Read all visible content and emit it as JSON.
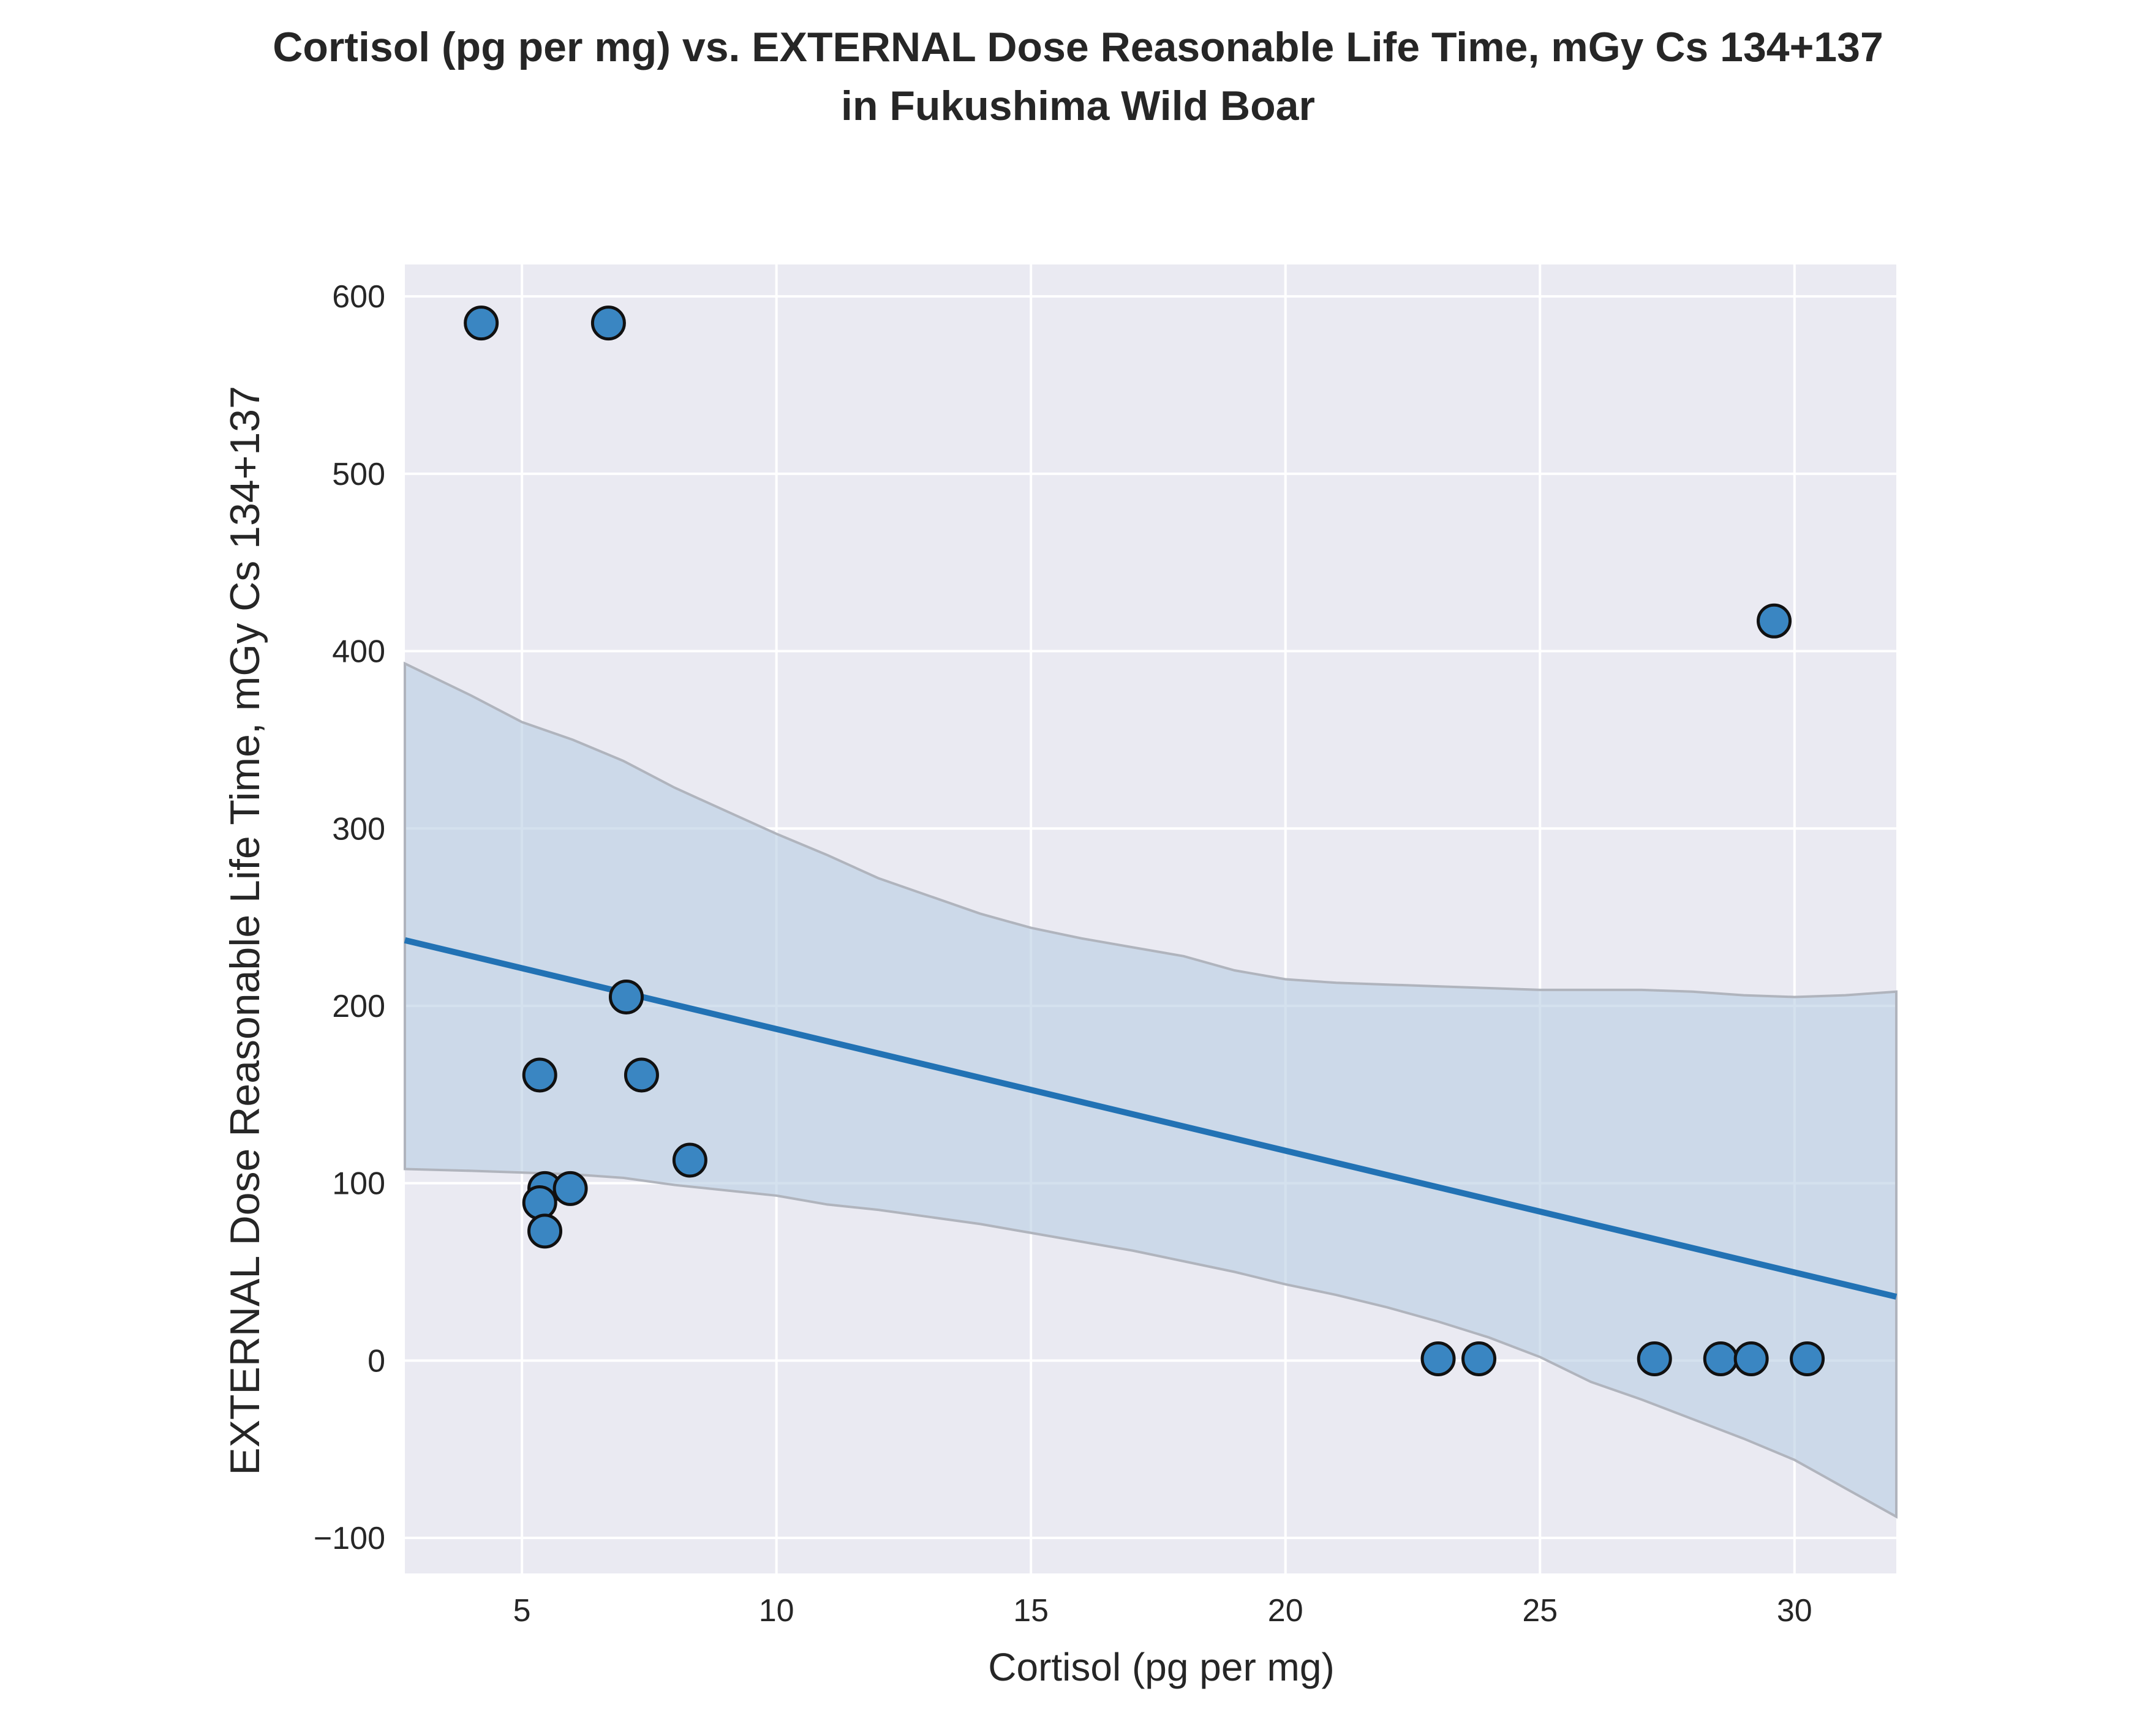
{
  "chart_data": {
    "type": "scatter",
    "title": "Cortisol (pg per mg) vs. EXTERNAL Dose Reasonable Life Time, mGy Cs 134+137",
    "subtitle": "in Fukushima Wild Boar",
    "xlabel": "Cortisol (pg per mg)",
    "ylabel": "EXTERNAL Dose Reasonable Life Time, mGy Cs 134+137",
    "xlim": [
      2.7,
      32.0
    ],
    "ylim": [
      -120,
      618
    ],
    "xticks": [
      5,
      10,
      15,
      20,
      25,
      30
    ],
    "yticks": [
      -100,
      0,
      100,
      200,
      300,
      400,
      500,
      600
    ],
    "grid": true,
    "points": [
      {
        "x": 4.2,
        "y": 585
      },
      {
        "x": 6.7,
        "y": 585
      },
      {
        "x": 29.6,
        "y": 417
      },
      {
        "x": 7.05,
        "y": 205
      },
      {
        "x": 5.35,
        "y": 161
      },
      {
        "x": 7.35,
        "y": 161
      },
      {
        "x": 8.3,
        "y": 113
      },
      {
        "x": 5.45,
        "y": 97
      },
      {
        "x": 5.95,
        "y": 97
      },
      {
        "x": 5.35,
        "y": 89
      },
      {
        "x": 5.45,
        "y": 73
      },
      {
        "x": 23.0,
        "y": 1
      },
      {
        "x": 23.8,
        "y": 1
      },
      {
        "x": 27.25,
        "y": 1
      },
      {
        "x": 28.55,
        "y": 1
      },
      {
        "x": 29.15,
        "y": 1
      },
      {
        "x": 30.25,
        "y": 1
      }
    ],
    "regression_line": {
      "x": [
        2.7,
        32.0
      ],
      "y": [
        237,
        36
      ]
    },
    "confidence_band": {
      "x": [
        2.7,
        4.0,
        5.0,
        6.0,
        7.0,
        8.0,
        9.0,
        10.0,
        11.0,
        12.0,
        13.0,
        14.0,
        15.0,
        16.0,
        17.0,
        18.0,
        19.0,
        20.0,
        21.0,
        22.0,
        23.0,
        24.0,
        25.0,
        26.0,
        27.0,
        28.0,
        29.0,
        30.0,
        31.0,
        32.0
      ],
      "upper": [
        393,
        375,
        360,
        350,
        338,
        323,
        310,
        297,
        285,
        272,
        262,
        252,
        244,
        238,
        233,
        228,
        220,
        215,
        213,
        212,
        211,
        210,
        209,
        209,
        209,
        208,
        206,
        205,
        206,
        208
      ],
      "lower": [
        108,
        107,
        106,
        105,
        103,
        99,
        96,
        93,
        88,
        85,
        81,
        77,
        72,
        67,
        62,
        56,
        50,
        43,
        37,
        30,
        22,
        13,
        2,
        -12,
        -22,
        -33,
        -44,
        -56,
        -72,
        -88
      ]
    },
    "colors": {
      "point_fill": "#3a86c2",
      "point_edge": "#111111",
      "line": "#2272b4",
      "band": "#b8cde3",
      "band_edge": "#b0b4bd",
      "plot_bg": "#eaeaf2",
      "grid": "#ffffff"
    }
  }
}
